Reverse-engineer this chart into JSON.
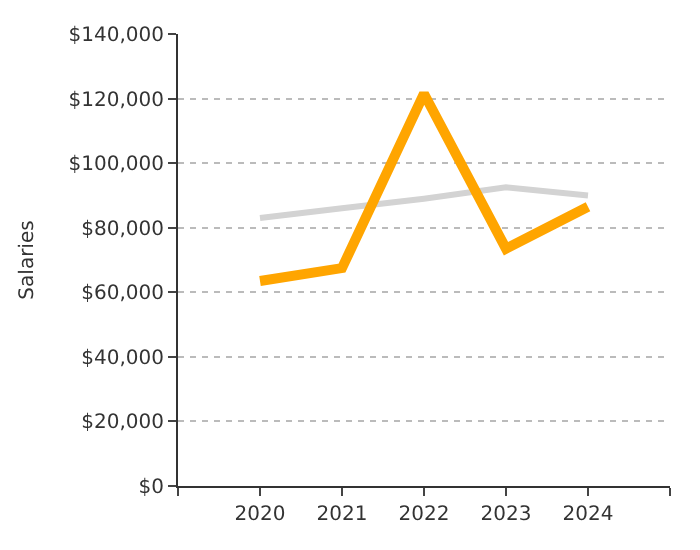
{
  "chart_data": {
    "type": "line",
    "ylabel": "Salaries",
    "x": [
      2020,
      2021,
      2022,
      2023,
      2024
    ],
    "xlim": [
      2019,
      2025
    ],
    "xticks": [
      {
        "value": 2019,
        "label": null
      },
      2020,
      2021,
      2022,
      2023,
      2024,
      {
        "value": 2025,
        "label": null
      }
    ],
    "ylim": [
      0,
      140000
    ],
    "yticks": [
      {
        "value": 0,
        "label": "$0"
      },
      {
        "value": 20000,
        "label": "$20,000"
      },
      {
        "value": 40000,
        "label": "$40,000"
      },
      {
        "value": 60000,
        "label": "$60,000"
      },
      {
        "value": 80000,
        "label": "$80,000"
      },
      {
        "value": 100000,
        "label": "$100,000"
      },
      {
        "value": 120000,
        "label": "$120,000"
      },
      {
        "value": 140000,
        "label": "$140,000"
      }
    ],
    "grid": "y",
    "marker": "none",
    "line_style": "solid",
    "series": [
      {
        "color": "#d3d3d3",
        "values": [
          83000,
          86000,
          89000,
          92500,
          90000
        ]
      },
      {
        "color": "#ffa500",
        "values": [
          63500,
          67500,
          121500,
          73500,
          86500
        ]
      }
    ]
  }
}
